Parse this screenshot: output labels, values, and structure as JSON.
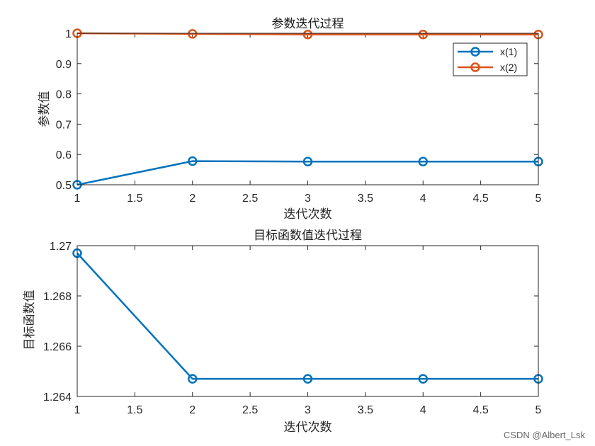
{
  "watermark": "CSDN @Albert_Lsk",
  "colors": {
    "series1": "#0072BD",
    "series2": "#D95319",
    "axis": "#262626"
  },
  "chart_data": [
    {
      "type": "line",
      "title": "参数迭代过程",
      "xlabel": "迭代次数",
      "ylabel": "参数值",
      "xlim": [
        1,
        5
      ],
      "ylim": [
        0.5,
        1.0
      ],
      "xticks": [
        1,
        1.5,
        2,
        2.5,
        3,
        3.5,
        4,
        4.5,
        5
      ],
      "xtick_labels": [
        "1",
        "1.5",
        "2",
        "2.5",
        "3",
        "3.5",
        "4",
        "4.5",
        "5"
      ],
      "yticks": [
        0.5,
        0.6,
        0.7,
        0.8,
        0.9,
        1.0
      ],
      "ytick_labels": [
        "0.5",
        "0.6",
        "0.7",
        "0.8",
        "0.9",
        "1"
      ],
      "legend_position": "top-right",
      "x": [
        1,
        2,
        3,
        4,
        5
      ],
      "series": [
        {
          "name": "x(1)",
          "color": "#0072BD",
          "values": [
            0.5,
            0.578,
            0.5765,
            0.5765,
            0.5765
          ]
        },
        {
          "name": "x(2)",
          "color": "#D95319",
          "values": [
            1.0,
            0.998,
            0.996,
            0.996,
            0.996
          ]
        }
      ]
    },
    {
      "type": "line",
      "title": "目标函数值迭代过程",
      "xlabel": "迭代次数",
      "ylabel": "目标函数值",
      "xlim": [
        1,
        5
      ],
      "ylim": [
        1.264,
        1.27
      ],
      "xticks": [
        1,
        1.5,
        2,
        2.5,
        3,
        3.5,
        4,
        4.5,
        5
      ],
      "xtick_labels": [
        "1",
        "1.5",
        "2",
        "2.5",
        "3",
        "3.5",
        "4",
        "4.5",
        "5"
      ],
      "yticks": [
        1.264,
        1.266,
        1.268,
        1.27
      ],
      "ytick_labels": [
        "1.264",
        "1.266",
        "1.268",
        "1.27"
      ],
      "x": [
        1,
        2,
        3,
        4,
        5
      ],
      "series": [
        {
          "color": "#0072BD",
          "values": [
            1.2697,
            1.2647,
            1.2647,
            1.2647,
            1.2647
          ]
        }
      ]
    }
  ]
}
